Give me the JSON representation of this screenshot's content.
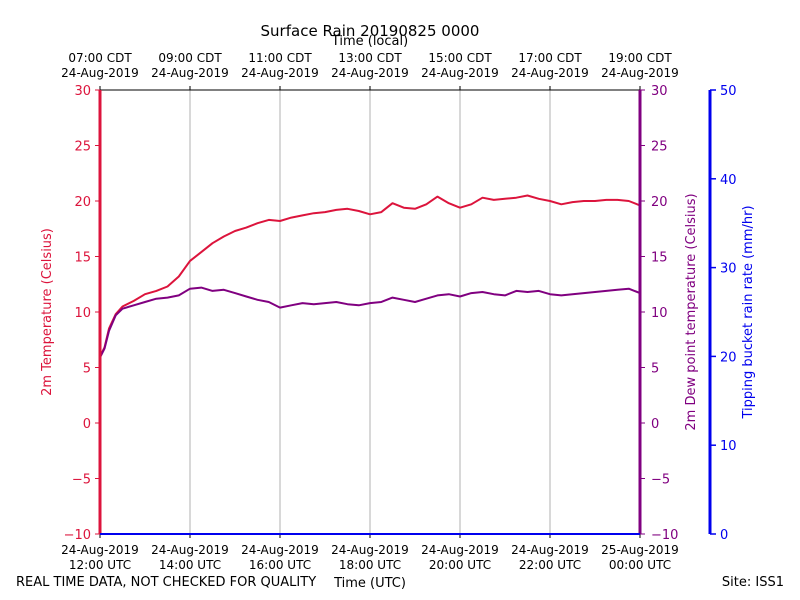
{
  "footer": {
    "left_note": "REAL TIME DATA, NOT CHECKED FOR QUALITY",
    "site": "Site: ISS1"
  },
  "chart_data": {
    "type": "line",
    "title": "Surface Rain 20190825 0000",
    "top_xlabel": "Time (local)",
    "xlabel": "Time (UTC)",
    "x_unit": "hours UTC on 24-Aug-2019",
    "xlim": [
      12,
      24
    ],
    "grid": true,
    "bottom_ticks": [
      {
        "x": 12,
        "date": "24-Aug-2019",
        "time": "12:00 UTC"
      },
      {
        "x": 14,
        "date": "24-Aug-2019",
        "time": "14:00 UTC"
      },
      {
        "x": 16,
        "date": "24-Aug-2019",
        "time": "16:00 UTC"
      },
      {
        "x": 18,
        "date": "24-Aug-2019",
        "time": "18:00 UTC"
      },
      {
        "x": 20,
        "date": "24-Aug-2019",
        "time": "20:00 UTC"
      },
      {
        "x": 22,
        "date": "24-Aug-2019",
        "time": "22:00 UTC"
      },
      {
        "x": 24,
        "date": "25-Aug-2019",
        "time": "00:00 UTC"
      }
    ],
    "top_ticks": [
      {
        "x": 12,
        "time": "07:00 CDT",
        "date": "24-Aug-2019"
      },
      {
        "x": 14,
        "time": "09:00 CDT",
        "date": "24-Aug-2019"
      },
      {
        "x": 16,
        "time": "11:00 CDT",
        "date": "24-Aug-2019"
      },
      {
        "x": 18,
        "time": "13:00 CDT",
        "date": "24-Aug-2019"
      },
      {
        "x": 20,
        "time": "15:00 CDT",
        "date": "24-Aug-2019"
      },
      {
        "x": 22,
        "time": "17:00 CDT",
        "date": "24-Aug-2019"
      },
      {
        "x": 24,
        "time": "19:00 CDT",
        "date": "24-Aug-2019"
      }
    ],
    "axes": {
      "left": {
        "label": "2m Temperature (Celsius)",
        "color": "#dc143c",
        "ylim": [
          -10,
          30
        ],
        "ticks": [
          -10,
          -5,
          0,
          5,
          10,
          15,
          20,
          25,
          30
        ]
      },
      "right_inner": {
        "label": "2m Dew point temperature (Celsius)",
        "color": "#800080",
        "ylim": [
          -10,
          30
        ],
        "ticks": [
          -10,
          -5,
          0,
          5,
          10,
          15,
          20,
          25,
          30
        ]
      },
      "right_outer": {
        "label": "Tipping bucket rain rate (mm/hr)",
        "color": "#0000ee",
        "ylim": [
          0,
          50
        ],
        "ticks": [
          0,
          10,
          20,
          30,
          40,
          50
        ]
      }
    },
    "series": [
      {
        "name": "2m Temperature",
        "color": "#dc143c",
        "axis": "left",
        "x": [
          12.0,
          12.1,
          12.2,
          12.35,
          12.5,
          12.75,
          13.0,
          13.25,
          13.5,
          13.75,
          14.0,
          14.25,
          14.5,
          14.75,
          15.0,
          15.25,
          15.5,
          15.75,
          16.0,
          16.25,
          16.5,
          16.75,
          17.0,
          17.25,
          17.5,
          17.75,
          18.0,
          18.25,
          18.5,
          18.75,
          19.0,
          19.25,
          19.5,
          19.75,
          20.0,
          20.25,
          20.5,
          20.75,
          21.0,
          21.25,
          21.5,
          21.75,
          22.0,
          22.25,
          22.5,
          22.75,
          23.0,
          23.25,
          23.5,
          23.75,
          24.0
        ],
        "y": [
          6.0,
          6.8,
          8.5,
          9.8,
          10.5,
          11.0,
          11.6,
          11.9,
          12.3,
          13.2,
          14.6,
          15.4,
          16.2,
          16.8,
          17.3,
          17.6,
          18.0,
          18.3,
          18.2,
          18.5,
          18.7,
          18.9,
          19.0,
          19.2,
          19.3,
          19.1,
          18.8,
          19.0,
          19.8,
          19.4,
          19.3,
          19.7,
          20.4,
          19.8,
          19.4,
          19.7,
          20.3,
          20.1,
          20.2,
          20.3,
          20.5,
          20.2,
          20.0,
          19.7,
          19.9,
          20.0,
          20.0,
          20.1,
          20.1,
          20.0,
          19.6
        ]
      },
      {
        "name": "2m Dew point temperature",
        "color": "#800080",
        "axis": "right_inner",
        "x": [
          12.0,
          12.1,
          12.2,
          12.35,
          12.5,
          12.75,
          13.0,
          13.25,
          13.5,
          13.75,
          14.0,
          14.25,
          14.5,
          14.75,
          15.0,
          15.25,
          15.5,
          15.75,
          16.0,
          16.25,
          16.5,
          16.75,
          17.0,
          17.25,
          17.5,
          17.75,
          18.0,
          18.25,
          18.5,
          18.75,
          19.0,
          19.25,
          19.5,
          19.75,
          20.0,
          20.25,
          20.5,
          20.75,
          21.0,
          21.25,
          21.5,
          21.75,
          22.0,
          22.25,
          22.5,
          22.75,
          23.0,
          23.25,
          23.5,
          23.75,
          24.0
        ],
        "y": [
          5.9,
          6.7,
          8.3,
          9.7,
          10.3,
          10.6,
          10.9,
          11.2,
          11.3,
          11.5,
          12.1,
          12.2,
          11.9,
          12.0,
          11.7,
          11.4,
          11.1,
          10.9,
          10.4,
          10.6,
          10.8,
          10.7,
          10.8,
          10.9,
          10.7,
          10.6,
          10.8,
          10.9,
          11.3,
          11.1,
          10.9,
          11.2,
          11.5,
          11.6,
          11.4,
          11.7,
          11.8,
          11.6,
          11.5,
          11.9,
          11.8,
          11.9,
          11.6,
          11.5,
          11.6,
          11.7,
          11.8,
          11.9,
          12.0,
          12.1,
          11.7
        ]
      }
    ]
  }
}
